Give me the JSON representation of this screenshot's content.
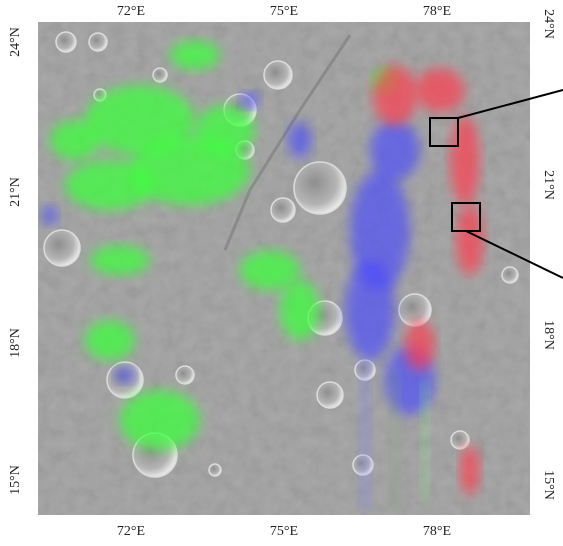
{
  "map": {
    "top_labels": [
      "72°E",
      "75°E",
      "78°E"
    ],
    "bottom_labels": [
      "72°E",
      "75°E",
      "78°E"
    ],
    "left_labels": [
      "24°N",
      "21°N",
      "18°N",
      "15°N"
    ],
    "right_labels": [
      "24°N",
      "21°N",
      "18°N",
      "15°N"
    ]
  }
}
